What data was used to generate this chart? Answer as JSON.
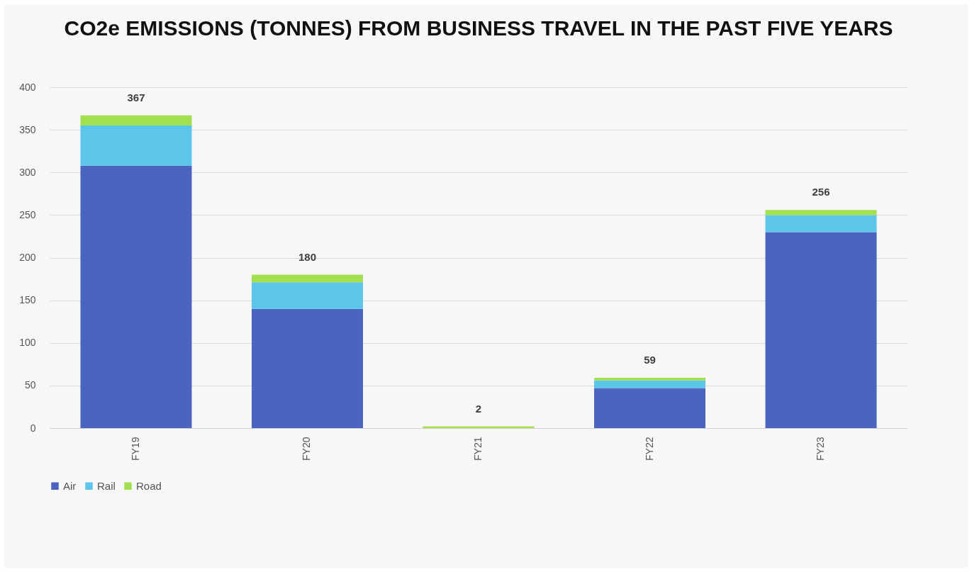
{
  "chart_data": {
    "type": "bar",
    "title": "CO2e EMISSIONS (TONNES) FROM BUSINESS TRAVEL IN THE PAST FIVE YEARS",
    "categories": [
      "FY19",
      "FY20",
      "FY21",
      "FY22",
      "FY23"
    ],
    "stacked": true,
    "series": [
      {
        "name": "Air",
        "color": "#4a64c0",
        "values": [
          308,
          140,
          0,
          47,
          230
        ]
      },
      {
        "name": "Rail",
        "color": "#5bc5ea",
        "values": [
          47,
          31,
          0,
          9,
          20
        ]
      },
      {
        "name": "Road",
        "color": "#a3e04f",
        "values": [
          12,
          9,
          2,
          3,
          6
        ]
      }
    ],
    "totals": [
      "367",
      "180",
      "2",
      "59",
      "256"
    ],
    "ylim": [
      0,
      400
    ],
    "yticks": [
      0,
      50,
      100,
      150,
      200,
      250,
      300,
      350,
      400
    ],
    "grid": "y",
    "legend": "bottom"
  }
}
